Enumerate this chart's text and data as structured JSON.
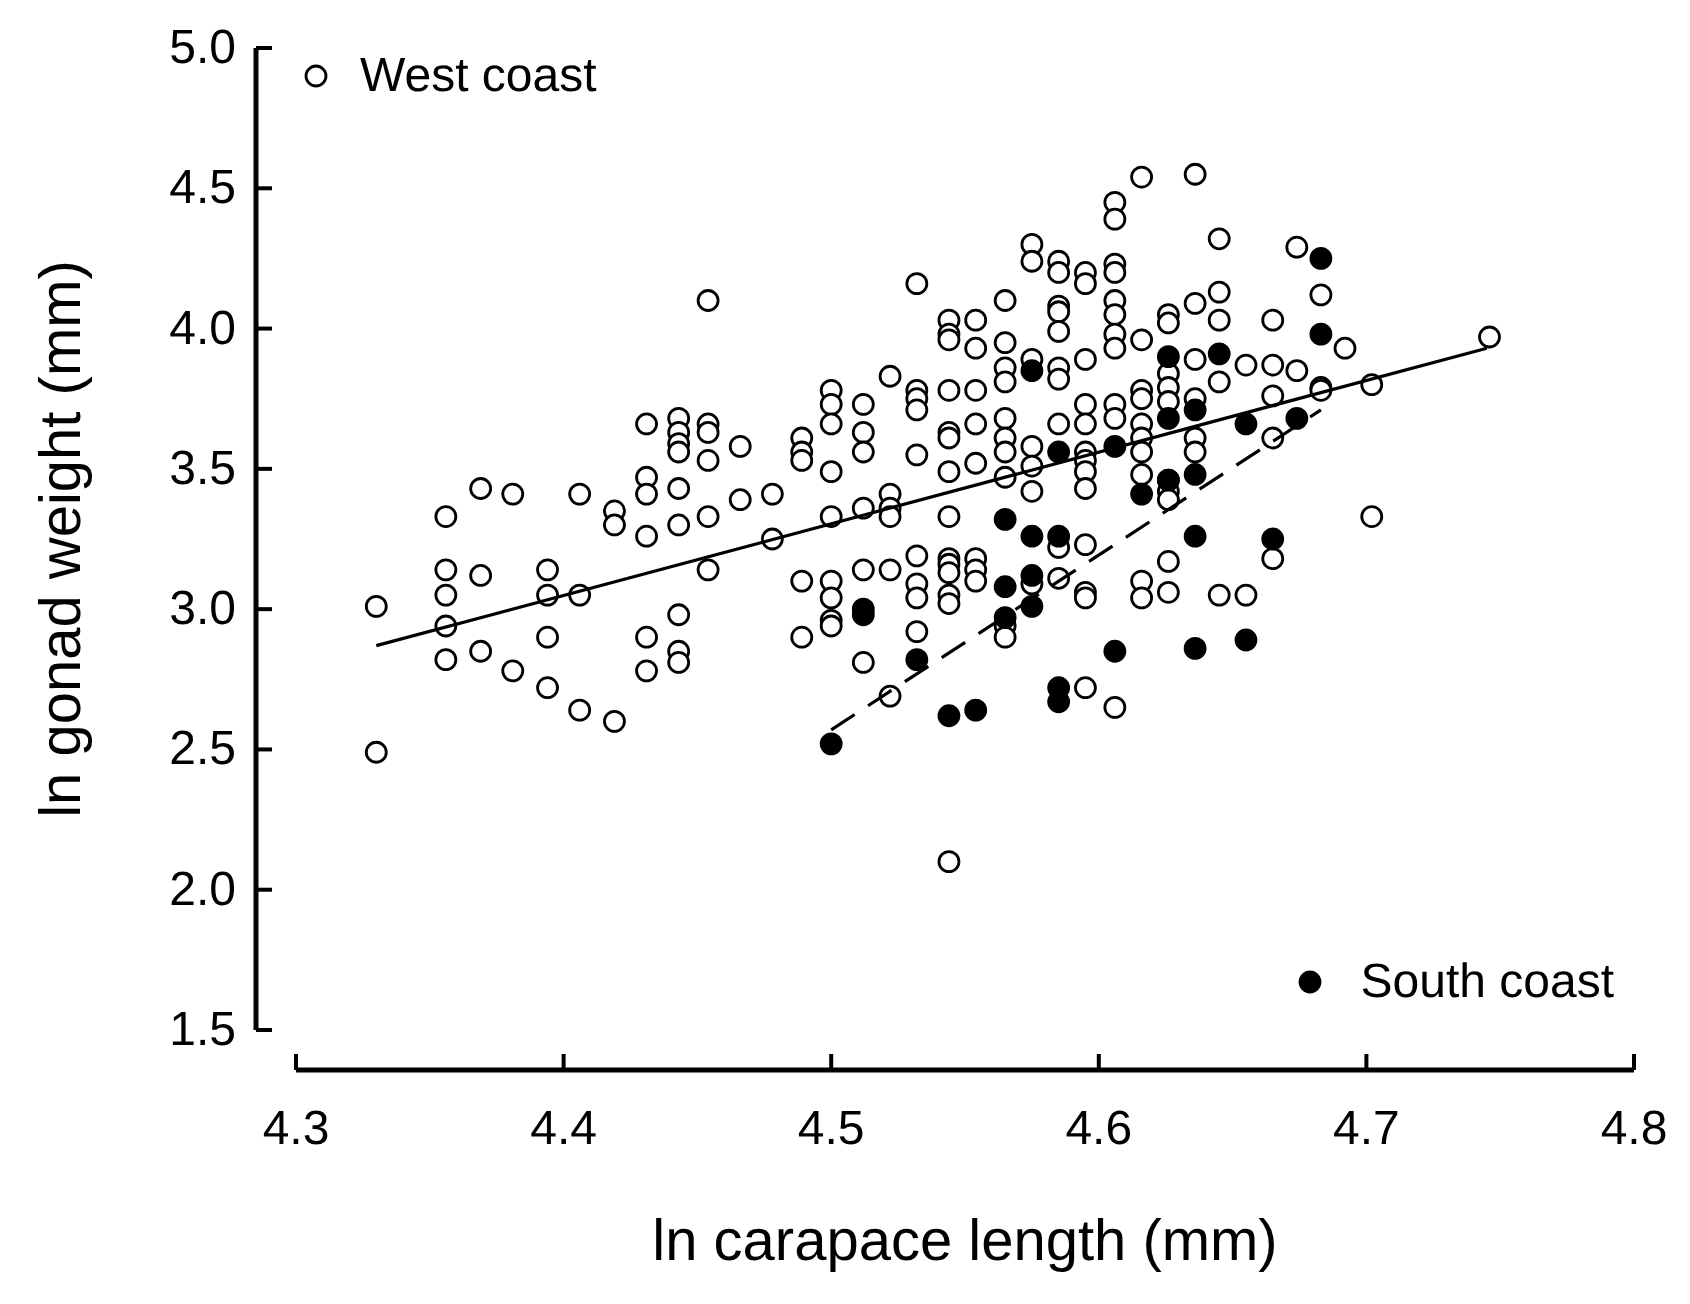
{
  "chart_data": {
    "type": "scatter",
    "xlabel": "ln carapace length (mm)",
    "ylabel": "ln gonad weight (mm)",
    "xlim": [
      4.3,
      4.8
    ],
    "xticks": [
      4.3,
      4.4,
      4.5,
      4.6,
      4.7,
      4.8
    ],
    "ylim": [
      1.5,
      5.0
    ],
    "yticks": [
      1.5,
      {
        "value": 2,
        "label": "2.0"
      },
      2.5,
      {
        "value": 3,
        "label": "3.0"
      },
      3.5,
      {
        "value": 4,
        "label": "4.0"
      },
      4.5,
      {
        "value": 5,
        "label": "5.0"
      }
    ],
    "grid": false,
    "legend": "top left",
    "marker": "circle",
    "series": [
      {
        "name": "West coast",
        "color": "#ffffff",
        "x": [
          4.33,
          4.33,
          4.356,
          4.356,
          4.356,
          4.356,
          4.356,
          4.369,
          4.369,
          4.369,
          4.381,
          4.381,
          4.394,
          4.394,
          4.394,
          4.394,
          4.406,
          4.406,
          4.406,
          4.419,
          4.419,
          4.419,
          4.431,
          4.431,
          4.431,
          4.431,
          4.431,
          4.431,
          4.443,
          4.443,
          4.443,
          4.443,
          4.443,
          4.443,
          4.443,
          4.443,
          4.443,
          4.454,
          4.454,
          4.454,
          4.454,
          4.454,
          4.454,
          4.466,
          4.466,
          4.478,
          4.478,
          4.489,
          4.489,
          4.489,
          4.489,
          4.489,
          4.5,
          4.5,
          4.5,
          4.5,
          4.5,
          4.5,
          4.5,
          4.5,
          4.5,
          4.512,
          4.512,
          4.512,
          4.512,
          4.512,
          4.512,
          4.522,
          4.522,
          4.522,
          4.522,
          4.522,
          4.522,
          4.532,
          4.532,
          4.532,
          4.532,
          4.532,
          4.532,
          4.532,
          4.532,
          4.532,
          4.544,
          4.544,
          4.544,
          4.544,
          4.544,
          4.544,
          4.544,
          4.544,
          4.544,
          4.544,
          4.544,
          4.544,
          4.544,
          4.544,
          4.554,
          4.554,
          4.554,
          4.554,
          4.554,
          4.554,
          4.554,
          4.554,
          4.565,
          4.565,
          4.565,
          4.565,
          4.565,
          4.565,
          4.565,
          4.565,
          4.565,
          4.565,
          4.575,
          4.575,
          4.575,
          4.575,
          4.575,
          4.575,
          4.575,
          4.585,
          4.585,
          4.585,
          4.585,
          4.585,
          4.585,
          4.585,
          4.585,
          4.585,
          4.585,
          4.595,
          4.595,
          4.595,
          4.595,
          4.595,
          4.595,
          4.595,
          4.595,
          4.595,
          4.595,
          4.595,
          4.595,
          4.595,
          4.606,
          4.606,
          4.606,
          4.606,
          4.606,
          4.606,
          4.606,
          4.606,
          4.606,
          4.606,
          4.606,
          4.616,
          4.616,
          4.616,
          4.616,
          4.616,
          4.616,
          4.616,
          4.616,
          4.616,
          4.616,
          4.626,
          4.626,
          4.626,
          4.626,
          4.626,
          4.626,
          4.626,
          4.626,
          4.626,
          4.626,
          4.636,
          4.636,
          4.636,
          4.636,
          4.636,
          4.636,
          4.645,
          4.645,
          4.645,
          4.645,
          4.645,
          4.655,
          4.655,
          4.665,
          4.665,
          4.665,
          4.665,
          4.665,
          4.674,
          4.674,
          4.683,
          4.683,
          4.683,
          4.692,
          4.702,
          4.702,
          4.746
        ],
        "values": [
          3.01,
          2.49,
          3.33,
          3.14,
          3.05,
          2.94,
          2.82,
          3.43,
          3.12,
          2.85,
          3.41,
          2.78,
          3.14,
          3.05,
          2.9,
          2.72,
          3.41,
          3.05,
          2.64,
          3.35,
          3.3,
          2.6,
          3.66,
          3.47,
          3.41,
          3.26,
          2.9,
          2.78,
          3.68,
          3.63,
          3.59,
          3.56,
          3.43,
          3.3,
          2.98,
          2.85,
          2.81,
          4.1,
          3.66,
          3.63,
          3.53,
          3.33,
          3.14,
          3.58,
          3.39,
          3.41,
          3.25,
          3.61,
          3.56,
          3.53,
          3.1,
          2.9,
          3.78,
          3.73,
          3.66,
          3.49,
          3.33,
          3.1,
          3.04,
          2.96,
          2.94,
          3.73,
          3.63,
          3.56,
          3.36,
          3.14,
          2.81,
          3.83,
          3.41,
          3.36,
          3.33,
          3.14,
          2.69,
          4.16,
          3.78,
          3.75,
          3.71,
          3.55,
          3.19,
          3.09,
          3.04,
          2.92,
          4.03,
          3.98,
          3.96,
          3.78,
          3.63,
          3.61,
          3.49,
          3.33,
          3.18,
          3.16,
          3.13,
          3.05,
          3.02,
          2.1,
          4.03,
          3.93,
          3.78,
          3.66,
          3.52,
          3.18,
          3.14,
          3.1,
          4.1,
          3.95,
          3.86,
          3.81,
          3.68,
          3.61,
          3.56,
          3.47,
          2.94,
          2.9,
          4.3,
          4.24,
          3.89,
          3.58,
          3.51,
          3.42,
          3.09,
          4.24,
          4.2,
          4.08,
          4.06,
          3.99,
          3.86,
          3.82,
          3.66,
          3.22,
          3.11,
          4.2,
          4.16,
          3.89,
          3.73,
          3.66,
          3.56,
          3.53,
          3.49,
          3.43,
          3.23,
          3.06,
          3.04,
          2.72,
          4.45,
          4.39,
          4.23,
          4.2,
          4.1,
          4.05,
          3.98,
          3.93,
          3.73,
          3.68,
          2.65,
          4.54,
          3.96,
          3.78,
          3.75,
          3.66,
          3.61,
          3.56,
          3.48,
          3.1,
          3.04,
          4.05,
          4.02,
          3.84,
          3.79,
          3.74,
          3.46,
          3.42,
          3.39,
          3.17,
          3.06,
          4.55,
          4.09,
          3.89,
          3.75,
          3.61,
          3.56,
          4.32,
          4.13,
          4.03,
          3.81,
          3.05,
          3.87,
          3.05,
          4.03,
          3.87,
          3.76,
          3.61,
          3.18,
          4.29,
          3.85,
          4.12,
          3.79,
          3.78,
          3.93,
          3.8,
          3.33,
          3.97
        ]
      },
      {
        "name": "South coast",
        "color": "#000000",
        "x": [
          4.5,
          4.512,
          4.512,
          4.532,
          4.544,
          4.554,
          4.565,
          4.565,
          4.565,
          4.575,
          4.575,
          4.575,
          4.575,
          4.585,
          4.585,
          4.585,
          4.585,
          4.606,
          4.606,
          4.616,
          4.626,
          4.626,
          4.626,
          4.636,
          4.636,
          4.636,
          4.636,
          4.645,
          4.655,
          4.655,
          4.665,
          4.674,
          4.683,
          4.683
        ],
        "values": [
          2.52,
          3.0,
          2.98,
          2.82,
          2.62,
          2.64,
          3.32,
          3.08,
          2.97,
          3.85,
          3.26,
          3.12,
          3.01,
          3.56,
          3.26,
          2.72,
          2.67,
          3.58,
          2.85,
          3.41,
          3.9,
          3.68,
          3.46,
          3.71,
          3.48,
          3.26,
          2.86,
          3.91,
          3.66,
          2.89,
          3.25,
          3.68,
          4.25,
          3.98
        ]
      },
      {
        "type": "line",
        "color": "#000000",
        "line_style": "solid",
        "marker": "none",
        "x": [
          4.33,
          4.745
        ],
        "values": [
          2.87,
          3.93
        ]
      },
      {
        "type": "line",
        "color": "#000000",
        "line_style": "dashed",
        "marker": "none",
        "x": [
          4.5,
          4.683
        ],
        "values": [
          2.57,
          3.71
        ]
      }
    ]
  }
}
